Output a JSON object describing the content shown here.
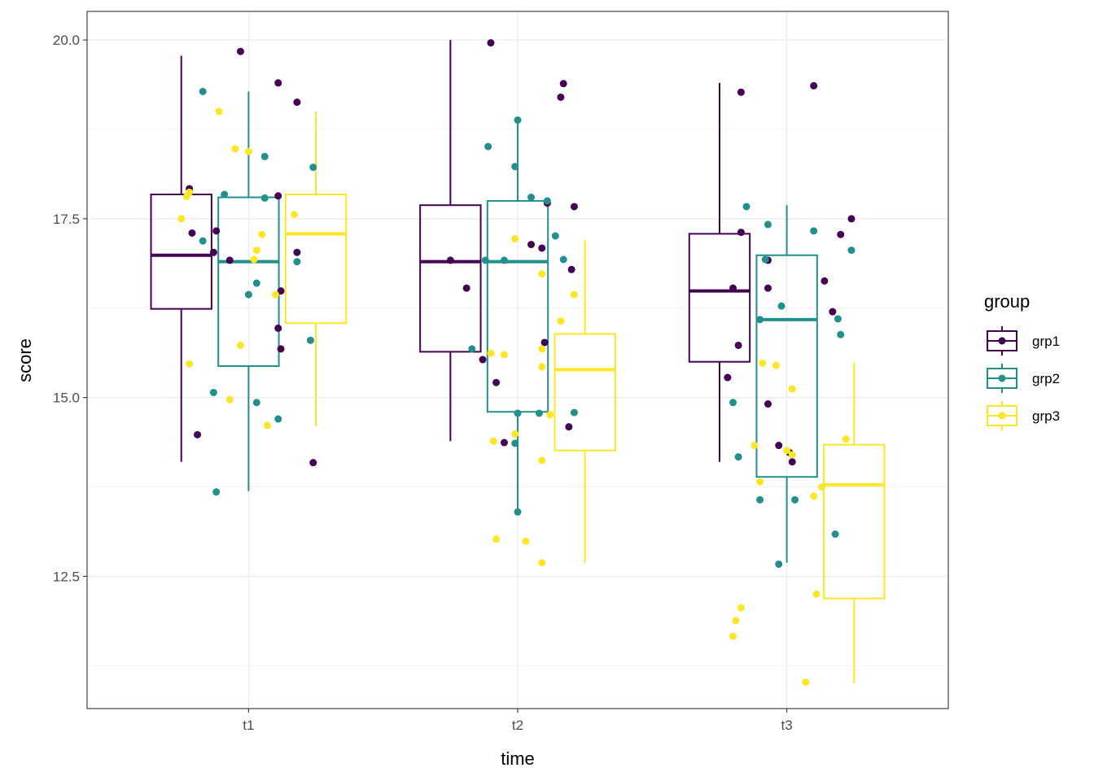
{
  "chart_data": {
    "type": "box",
    "title": "",
    "xlabel": "time",
    "ylabel": "score",
    "categories": [
      "t1",
      "t2",
      "t3"
    ],
    "y_ticks": [
      12.5,
      15.0,
      17.5,
      20.0
    ],
    "y_tick_labels": [
      "12.5",
      "15.0",
      "17.5",
      "20.0"
    ],
    "ylim": [
      10.65,
      20.4
    ],
    "grid": true,
    "theme": "bw",
    "legend": {
      "title": "group",
      "position": "right",
      "items": [
        {
          "label": "grp1",
          "color": "#440154"
        },
        {
          "label": "grp2",
          "color": "#21908C"
        },
        {
          "label": "grp3",
          "color": "#FDE725"
        }
      ]
    },
    "series": [
      {
        "name": "grp1",
        "color": "#440154",
        "boxes": [
          {
            "category": "t1",
            "lower_whisker": 14.1,
            "q1": 16.24,
            "median": 16.99,
            "q3": 17.84,
            "upper_whisker": 19.78
          },
          {
            "category": "t2",
            "lower_whisker": 14.39,
            "q1": 15.64,
            "median": 16.9,
            "q3": 17.69,
            "upper_whisker": 20.0
          },
          {
            "category": "t3",
            "lower_whisker": 14.1,
            "q1": 15.5,
            "median": 16.49,
            "q3": 17.29,
            "upper_whisker": 19.4
          }
        ],
        "points": [
          {
            "category": "t1",
            "jitter": -0.22,
            "y": 17.92
          },
          {
            "category": "t1",
            "jitter": -0.21,
            "y": 17.3
          },
          {
            "category": "t1",
            "jitter": -0.19,
            "y": 14.48
          },
          {
            "category": "t1",
            "jitter": -0.13,
            "y": 17.03
          },
          {
            "category": "t1",
            "jitter": -0.12,
            "y": 17.33
          },
          {
            "category": "t1",
            "jitter": -0.07,
            "y": 16.92
          },
          {
            "category": "t1",
            "jitter": -0.03,
            "y": 19.84
          },
          {
            "category": "t1",
            "jitter": 0.11,
            "y": 17.82
          },
          {
            "category": "t1",
            "jitter": 0.11,
            "y": 19.4
          },
          {
            "category": "t1",
            "jitter": 0.11,
            "y": 15.97
          },
          {
            "category": "t1",
            "jitter": 0.12,
            "y": 15.68
          },
          {
            "category": "t1",
            "jitter": 0.12,
            "y": 16.49
          },
          {
            "category": "t1",
            "jitter": 0.18,
            "y": 19.13
          },
          {
            "category": "t1",
            "jitter": 0.18,
            "y": 17.03
          },
          {
            "category": "t1",
            "jitter": 0.24,
            "y": 14.09
          },
          {
            "category": "t2",
            "jitter": -0.25,
            "y": 16.92
          },
          {
            "category": "t2",
            "jitter": -0.19,
            "y": 16.53
          },
          {
            "category": "t2",
            "jitter": -0.13,
            "y": 15.53
          },
          {
            "category": "t2",
            "jitter": -0.08,
            "y": 15.21
          },
          {
            "category": "t2",
            "jitter": -0.05,
            "y": 14.37
          },
          {
            "category": "t2",
            "jitter": -0.1,
            "y": 19.96
          },
          {
            "category": "t2",
            "jitter": 0.05,
            "y": 17.14
          },
          {
            "category": "t2",
            "jitter": 0.09,
            "y": 17.09
          },
          {
            "category": "t2",
            "jitter": 0.1,
            "y": 15.77
          },
          {
            "category": "t2",
            "jitter": 0.11,
            "y": 17.72
          },
          {
            "category": "t2",
            "jitter": 0.16,
            "y": 19.2
          },
          {
            "category": "t2",
            "jitter": 0.17,
            "y": 19.39
          },
          {
            "category": "t2",
            "jitter": 0.19,
            "y": 14.59
          },
          {
            "category": "t2",
            "jitter": 0.2,
            "y": 16.79
          },
          {
            "category": "t2",
            "jitter": 0.21,
            "y": 17.67
          },
          {
            "category": "t3",
            "jitter": -0.22,
            "y": 15.28
          },
          {
            "category": "t3",
            "jitter": -0.2,
            "y": 16.53
          },
          {
            "category": "t3",
            "jitter": -0.18,
            "y": 15.73
          },
          {
            "category": "t3",
            "jitter": -0.17,
            "y": 17.31
          },
          {
            "category": "t3",
            "jitter": -0.17,
            "y": 19.27
          },
          {
            "category": "t3",
            "jitter": -0.07,
            "y": 16.92
          },
          {
            "category": "t3",
            "jitter": -0.07,
            "y": 16.53
          },
          {
            "category": "t3",
            "jitter": -0.07,
            "y": 14.91
          },
          {
            "category": "t3",
            "jitter": -0.03,
            "y": 14.33
          },
          {
            "category": "t3",
            "jitter": 0.01,
            "y": 14.23
          },
          {
            "category": "t3",
            "jitter": 0.02,
            "y": 14.1
          },
          {
            "category": "t3",
            "jitter": 0.1,
            "y": 19.36
          },
          {
            "category": "t3",
            "jitter": 0.14,
            "y": 16.63
          },
          {
            "category": "t3",
            "jitter": 0.17,
            "y": 16.2
          },
          {
            "category": "t3",
            "jitter": 0.2,
            "y": 17.28
          },
          {
            "category": "t3",
            "jitter": 0.24,
            "y": 17.5
          }
        ]
      },
      {
        "name": "grp2",
        "color": "#21908C",
        "boxes": [
          {
            "category": "t1",
            "lower_whisker": 13.69,
            "q1": 15.44,
            "median": 16.9,
            "q3": 17.8,
            "upper_whisker": 19.28
          },
          {
            "category": "t2",
            "lower_whisker": 13.39,
            "q1": 14.8,
            "median": 16.9,
            "q3": 17.75,
            "upper_whisker": 18.9
          },
          {
            "category": "t3",
            "lower_whisker": 12.69,
            "q1": 13.89,
            "median": 16.09,
            "q3": 16.99,
            "upper_whisker": 17.69
          }
        ],
        "points": [
          {
            "category": "t1",
            "jitter": -0.17,
            "y": 19.28
          },
          {
            "category": "t1",
            "jitter": -0.17,
            "y": 17.19
          },
          {
            "category": "t1",
            "jitter": -0.13,
            "y": 15.07
          },
          {
            "category": "t1",
            "jitter": -0.12,
            "y": 13.68
          },
          {
            "category": "t1",
            "jitter": -0.09,
            "y": 17.84
          },
          {
            "category": "t1",
            "jitter": -0.0,
            "y": 16.44
          },
          {
            "category": "t1",
            "jitter": 0.03,
            "y": 16.6
          },
          {
            "category": "t1",
            "jitter": 0.03,
            "y": 14.93
          },
          {
            "category": "t1",
            "jitter": 0.06,
            "y": 18.37
          },
          {
            "category": "t1",
            "jitter": 0.06,
            "y": 17.79
          },
          {
            "category": "t1",
            "jitter": 0.11,
            "y": 14.7
          },
          {
            "category": "t1",
            "jitter": 0.18,
            "y": 16.9
          },
          {
            "category": "t1",
            "jitter": 0.23,
            "y": 15.8
          },
          {
            "category": "t1",
            "jitter": 0.24,
            "y": 18.22
          },
          {
            "category": "t2",
            "jitter": -0.17,
            "y": 15.68
          },
          {
            "category": "t2",
            "jitter": -0.12,
            "y": 16.92
          },
          {
            "category": "t2",
            "jitter": -0.11,
            "y": 18.51
          },
          {
            "category": "t2",
            "jitter": -0.05,
            "y": 16.92
          },
          {
            "category": "t2",
            "jitter": -0.0,
            "y": 14.78
          },
          {
            "category": "t2",
            "jitter": -0.01,
            "y": 14.36
          },
          {
            "category": "t2",
            "jitter": -0.0,
            "y": 13.4
          },
          {
            "category": "t2",
            "jitter": -0.01,
            "y": 18.23
          },
          {
            "category": "t2",
            "jitter": 0.0,
            "y": 18.88
          },
          {
            "category": "t2",
            "jitter": 0.05,
            "y": 17.8
          },
          {
            "category": "t2",
            "jitter": 0.08,
            "y": 14.78
          },
          {
            "category": "t2",
            "jitter": 0.11,
            "y": 17.75
          },
          {
            "category": "t2",
            "jitter": 0.14,
            "y": 17.26
          },
          {
            "category": "t2",
            "jitter": 0.17,
            "y": 16.93
          },
          {
            "category": "t2",
            "jitter": 0.21,
            "y": 14.79
          },
          {
            "category": "t3",
            "jitter": -0.2,
            "y": 14.93
          },
          {
            "category": "t3",
            "jitter": -0.18,
            "y": 14.17
          },
          {
            "category": "t3",
            "jitter": -0.15,
            "y": 17.67
          },
          {
            "category": "t3",
            "jitter": -0.1,
            "y": 16.09
          },
          {
            "category": "t3",
            "jitter": -0.1,
            "y": 13.57
          },
          {
            "category": "t3",
            "jitter": -0.08,
            "y": 16.93
          },
          {
            "category": "t3",
            "jitter": -0.07,
            "y": 17.42
          },
          {
            "category": "t3",
            "jitter": -0.03,
            "y": 12.67
          },
          {
            "category": "t3",
            "jitter": -0.02,
            "y": 16.28
          },
          {
            "category": "t3",
            "jitter": 0.03,
            "y": 13.57
          },
          {
            "category": "t3",
            "jitter": 0.1,
            "y": 17.33
          },
          {
            "category": "t3",
            "jitter": 0.18,
            "y": 13.09
          },
          {
            "category": "t3",
            "jitter": 0.19,
            "y": 16.1
          },
          {
            "category": "t3",
            "jitter": 0.2,
            "y": 15.88
          },
          {
            "category": "t3",
            "jitter": 0.24,
            "y": 17.06
          }
        ]
      },
      {
        "name": "grp3",
        "color": "#FDE725",
        "boxes": [
          {
            "category": "t1",
            "lower_whisker": 14.6,
            "q1": 16.04,
            "median": 17.29,
            "q3": 17.84,
            "upper_whisker": 19.0
          },
          {
            "category": "t2",
            "lower_whisker": 12.69,
            "q1": 14.26,
            "median": 15.39,
            "q3": 15.89,
            "upper_whisker": 17.2
          },
          {
            "category": "t3",
            "lower_whisker": 11.0,
            "q1": 12.19,
            "median": 13.78,
            "q3": 14.34,
            "upper_whisker": 15.49
          }
        ],
        "points": [
          {
            "category": "t1",
            "jitter": -0.25,
            "y": 17.5
          },
          {
            "category": "t1",
            "jitter": -0.23,
            "y": 17.81
          },
          {
            "category": "t1",
            "jitter": -0.22,
            "y": 17.87
          },
          {
            "category": "t1",
            "jitter": -0.22,
            "y": 15.47
          },
          {
            "category": "t1",
            "jitter": -0.11,
            "y": 19.0
          },
          {
            "category": "t1",
            "jitter": -0.07,
            "y": 14.97
          },
          {
            "category": "t1",
            "jitter": -0.05,
            "y": 18.48
          },
          {
            "category": "t1",
            "jitter": -0.03,
            "y": 15.73
          },
          {
            "category": "t1",
            "jitter": -0.0,
            "y": 18.44
          },
          {
            "category": "t1",
            "jitter": 0.07,
            "y": 14.61
          },
          {
            "category": "t1",
            "jitter": 0.02,
            "y": 16.93
          },
          {
            "category": "t1",
            "jitter": 0.03,
            "y": 17.06
          },
          {
            "category": "t1",
            "jitter": 0.05,
            "y": 17.28
          },
          {
            "category": "t1",
            "jitter": 0.1,
            "y": 16.44
          },
          {
            "category": "t1",
            "jitter": 0.17,
            "y": 17.56
          },
          {
            "category": "t2",
            "jitter": -0.08,
            "y": 13.02
          },
          {
            "category": "t2",
            "jitter": -0.1,
            "y": 15.62
          },
          {
            "category": "t2",
            "jitter": -0.09,
            "y": 14.39
          },
          {
            "category": "t2",
            "jitter": -0.01,
            "y": 14.49
          },
          {
            "category": "t2",
            "jitter": -0.05,
            "y": 15.6
          },
          {
            "category": "t2",
            "jitter": -0.01,
            "y": 17.22
          },
          {
            "category": "t2",
            "jitter": 0.03,
            "y": 12.99
          },
          {
            "category": "t2",
            "jitter": 0.09,
            "y": 14.12
          },
          {
            "category": "t2",
            "jitter": 0.09,
            "y": 15.68
          },
          {
            "category": "t2",
            "jitter": 0.09,
            "y": 15.43
          },
          {
            "category": "t2",
            "jitter": 0.09,
            "y": 16.73
          },
          {
            "category": "t2",
            "jitter": 0.09,
            "y": 12.69
          },
          {
            "category": "t2",
            "jitter": 0.12,
            "y": 14.76
          },
          {
            "category": "t2",
            "jitter": 0.16,
            "y": 16.07
          },
          {
            "category": "t2",
            "jitter": 0.21,
            "y": 16.44
          },
          {
            "category": "t3",
            "jitter": -0.2,
            "y": 11.66
          },
          {
            "category": "t3",
            "jitter": -0.19,
            "y": 11.88
          },
          {
            "category": "t3",
            "jitter": -0.17,
            "y": 12.06
          },
          {
            "category": "t3",
            "jitter": -0.12,
            "y": 14.33
          },
          {
            "category": "t3",
            "jitter": -0.1,
            "y": 13.82
          },
          {
            "category": "t3",
            "jitter": -0.09,
            "y": 15.48
          },
          {
            "category": "t3",
            "jitter": -0.04,
            "y": 15.45
          },
          {
            "category": "t3",
            "jitter": -0.0,
            "y": 14.26
          },
          {
            "category": "t3",
            "jitter": 0.02,
            "y": 14.2
          },
          {
            "category": "t3",
            "jitter": 0.02,
            "y": 15.12
          },
          {
            "category": "t3",
            "jitter": 0.07,
            "y": 11.02
          },
          {
            "category": "t3",
            "jitter": 0.1,
            "y": 13.62
          },
          {
            "category": "t3",
            "jitter": 0.11,
            "y": 12.25
          },
          {
            "category": "t3",
            "jitter": 0.13,
            "y": 13.75
          },
          {
            "category": "t3",
            "jitter": 0.22,
            "y": 14.42
          }
        ]
      }
    ]
  }
}
